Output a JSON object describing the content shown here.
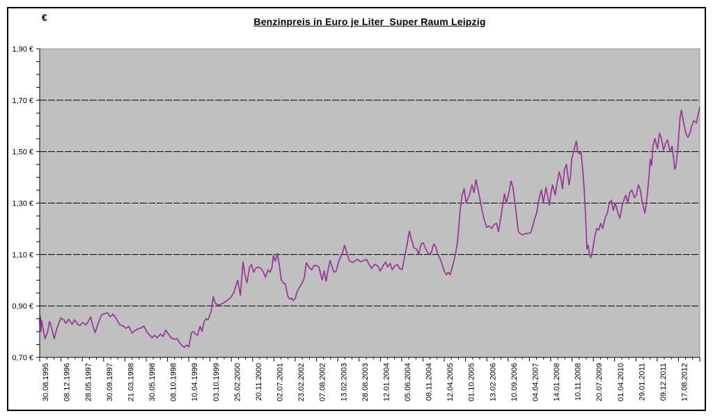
{
  "chart_data": {
    "type": "line",
    "title": "Benzinpreis in Euro je Liter  Super Raum Leipzig",
    "ylabel": "€",
    "xlabel": "",
    "ylim": [
      0.7,
      1.9
    ],
    "y_major_step": 0.2,
    "y_minor_step": 0.05,
    "grid": "horizontal-dashed",
    "legend": "none",
    "plot_bg": "#c0c0c0",
    "grid_color": "#000000",
    "axis_color": "#000000",
    "y_tick_labels": [
      "1,90 €",
      "1,70 €",
      "1,50 €",
      "1,30 €",
      "1,10 €",
      "0,90 €",
      "0,70 €"
    ],
    "x_tick_labels": [
      "30.08.1995",
      "08.12.1996",
      "28.05.1997",
      "30.09.1997",
      "21.03.1998",
      "30.05.1998",
      "08.10.1998",
      "10.04.1999",
      "03.10.1999",
      "25.02.2000",
      "20.11.2000",
      "02.07.2001",
      "23.02.2002",
      "07.08.2002",
      "13.02.2003",
      "28.08.2003",
      "12.01.2004",
      "05.06.2004",
      "08.11.2004",
      "12.04.2005",
      "01.10.2005",
      "13.02.2006",
      "10.09.2006",
      "04.04.2007",
      "14.01.2008",
      "10.11.2008",
      "20.07.2009",
      "01.04.2010",
      "29.01.2011",
      "09.12.2011",
      "17.08.2012"
    ],
    "x_minor_ticks_per_label": 3,
    "series": [
      {
        "name": "Benzinpreis Super Raum Leipzig",
        "color": "#993399",
        "points": [
          [
            0.0,
            0.84
          ],
          [
            0.001,
            0.86
          ],
          [
            0.002,
            0.8
          ],
          [
            0.003,
            0.845
          ],
          [
            0.005,
            0.815
          ],
          [
            0.008,
            0.772
          ],
          [
            0.012,
            0.8
          ],
          [
            0.015,
            0.84
          ],
          [
            0.018,
            0.815
          ],
          [
            0.022,
            0.773
          ],
          [
            0.026,
            0.812
          ],
          [
            0.032,
            0.853
          ],
          [
            0.037,
            0.845
          ],
          [
            0.04,
            0.832
          ],
          [
            0.044,
            0.849
          ],
          [
            0.049,
            0.828
          ],
          [
            0.053,
            0.846
          ],
          [
            0.057,
            0.83
          ],
          [
            0.061,
            0.824
          ],
          [
            0.065,
            0.836
          ],
          [
            0.07,
            0.826
          ],
          [
            0.074,
            0.842
          ],
          [
            0.077,
            0.857
          ],
          [
            0.081,
            0.82
          ],
          [
            0.084,
            0.796
          ],
          [
            0.089,
            0.835
          ],
          [
            0.094,
            0.866
          ],
          [
            0.099,
            0.871
          ],
          [
            0.103,
            0.873
          ],
          [
            0.107,
            0.858
          ],
          [
            0.111,
            0.868
          ],
          [
            0.116,
            0.851
          ],
          [
            0.121,
            0.828
          ],
          [
            0.127,
            0.821
          ],
          [
            0.131,
            0.813
          ],
          [
            0.135,
            0.821
          ],
          [
            0.14,
            0.794
          ],
          [
            0.145,
            0.806
          ],
          [
            0.15,
            0.812
          ],
          [
            0.154,
            0.815
          ],
          [
            0.158,
            0.822
          ],
          [
            0.162,
            0.8
          ],
          [
            0.167,
            0.786
          ],
          [
            0.17,
            0.776
          ],
          [
            0.174,
            0.786
          ],
          [
            0.178,
            0.776
          ],
          [
            0.183,
            0.791
          ],
          [
            0.187,
            0.781
          ],
          [
            0.191,
            0.806
          ],
          [
            0.195,
            0.791
          ],
          [
            0.199,
            0.776
          ],
          [
            0.204,
            0.771
          ],
          [
            0.208,
            0.773
          ],
          [
            0.212,
            0.756
          ],
          [
            0.216,
            0.746
          ],
          [
            0.219,
            0.739
          ],
          [
            0.223,
            0.748
          ],
          [
            0.226,
            0.741
          ],
          [
            0.23,
            0.796
          ],
          [
            0.233,
            0.801
          ],
          [
            0.236,
            0.791
          ],
          [
            0.239,
            0.786
          ],
          [
            0.243,
            0.821
          ],
          [
            0.246,
            0.801
          ],
          [
            0.249,
            0.838
          ],
          [
            0.252,
            0.851
          ],
          [
            0.255,
            0.846
          ],
          [
            0.26,
            0.881
          ],
          [
            0.263,
            0.936
          ],
          [
            0.266,
            0.911
          ],
          [
            0.27,
            0.903
          ],
          [
            0.274,
            0.906
          ],
          [
            0.278,
            0.911
          ],
          [
            0.284,
            0.921
          ],
          [
            0.289,
            0.931
          ],
          [
            0.294,
            0.951
          ],
          [
            0.3,
            1.001
          ],
          [
            0.304,
            0.941
          ],
          [
            0.308,
            1.071
          ],
          [
            0.311,
            1.021
          ],
          [
            0.314,
            0.991
          ],
          [
            0.318,
            1.051
          ],
          [
            0.321,
            1.061
          ],
          [
            0.324,
            1.031
          ],
          [
            0.327,
            1.046
          ],
          [
            0.331,
            1.051
          ],
          [
            0.335,
            1.046
          ],
          [
            0.339,
            1.031
          ],
          [
            0.342,
            1.011
          ],
          [
            0.346,
            1.041
          ],
          [
            0.349,
            1.031
          ],
          [
            0.352,
            1.051
          ],
          [
            0.354,
            1.096
          ],
          [
            0.357,
            1.074
          ],
          [
            0.36,
            1.104
          ],
          [
            0.363,
            1.061
          ],
          [
            0.366,
            1.001
          ],
          [
            0.369,
            0.989
          ],
          [
            0.372,
            0.986
          ],
          [
            0.376,
            0.938
          ],
          [
            0.379,
            0.926
          ],
          [
            0.382,
            0.931
          ],
          [
            0.384,
            0.921
          ],
          [
            0.387,
            0.929
          ],
          [
            0.39,
            0.956
          ],
          [
            0.394,
            0.974
          ],
          [
            0.398,
            0.991
          ],
          [
            0.401,
            1.011
          ],
          [
            0.404,
            1.068
          ],
          [
            0.408,
            1.051
          ],
          [
            0.412,
            1.041
          ],
          [
            0.416,
            1.058
          ],
          [
            0.42,
            1.056
          ],
          [
            0.423,
            1.051
          ],
          [
            0.426,
            1.021
          ],
          [
            0.428,
            1.001
          ],
          [
            0.431,
            1.036
          ],
          [
            0.434,
            0.996
          ],
          [
            0.437,
            1.041
          ],
          [
            0.44,
            1.078
          ],
          [
            0.443,
            1.051
          ],
          [
            0.446,
            1.031
          ],
          [
            0.449,
            1.036
          ],
          [
            0.454,
            1.081
          ],
          [
            0.458,
            1.101
          ],
          [
            0.462,
            1.136
          ],
          [
            0.466,
            1.101
          ],
          [
            0.469,
            1.076
          ],
          [
            0.474,
            1.069
          ],
          [
            0.478,
            1.076
          ],
          [
            0.482,
            1.081
          ],
          [
            0.486,
            1.071
          ],
          [
            0.49,
            1.076
          ],
          [
            0.495,
            1.081
          ],
          [
            0.499,
            1.061
          ],
          [
            0.503,
            1.046
          ],
          [
            0.507,
            1.061
          ],
          [
            0.512,
            1.056
          ],
          [
            0.516,
            1.036
          ],
          [
            0.52,
            1.056
          ],
          [
            0.524,
            1.071
          ],
          [
            0.527,
            1.051
          ],
          [
            0.531,
            1.066
          ],
          [
            0.534,
            1.041
          ],
          [
            0.538,
            1.056
          ],
          [
            0.542,
            1.061
          ],
          [
            0.545,
            1.046
          ],
          [
            0.549,
            1.041
          ],
          [
            0.553,
            1.091
          ],
          [
            0.556,
            1.131
          ],
          [
            0.56,
            1.191
          ],
          [
            0.563,
            1.161
          ],
          [
            0.567,
            1.126
          ],
          [
            0.571,
            1.121
          ],
          [
            0.574,
            1.101
          ],
          [
            0.578,
            1.141
          ],
          [
            0.581,
            1.146
          ],
          [
            0.585,
            1.121
          ],
          [
            0.589,
            1.101
          ],
          [
            0.593,
            1.106
          ],
          [
            0.597,
            1.141
          ],
          [
            0.6,
            1.131
          ],
          [
            0.603,
            1.101
          ],
          [
            0.608,
            1.076
          ],
          [
            0.612,
            1.041
          ],
          [
            0.616,
            1.021
          ],
          [
            0.619,
            1.031
          ],
          [
            0.622,
            1.021
          ],
          [
            0.627,
            1.071
          ],
          [
            0.63,
            1.101
          ],
          [
            0.633,
            1.151
          ],
          [
            0.637,
            1.271
          ],
          [
            0.64,
            1.331
          ],
          [
            0.643,
            1.356
          ],
          [
            0.646,
            1.301
          ],
          [
            0.651,
            1.331
          ],
          [
            0.655,
            1.371
          ],
          [
            0.658,
            1.341
          ],
          [
            0.661,
            1.391
          ],
          [
            0.665,
            1.341
          ],
          [
            0.668,
            1.301
          ],
          [
            0.671,
            1.261
          ],
          [
            0.674,
            1.231
          ],
          [
            0.677,
            1.206
          ],
          [
            0.681,
            1.211
          ],
          [
            0.685,
            1.201
          ],
          [
            0.688,
            1.216
          ],
          [
            0.692,
            1.221
          ],
          [
            0.695,
            1.188
          ],
          [
            0.699,
            1.251
          ],
          [
            0.704,
            1.336
          ],
          [
            0.707,
            1.301
          ],
          [
            0.711,
            1.341
          ],
          [
            0.714,
            1.386
          ],
          [
            0.717,
            1.361
          ],
          [
            0.721,
            1.281
          ],
          [
            0.725,
            1.191
          ],
          [
            0.728,
            1.181
          ],
          [
            0.732,
            1.176
          ],
          [
            0.735,
            1.181
          ],
          [
            0.74,
            1.181
          ],
          [
            0.744,
            1.186
          ],
          [
            0.747,
            1.211
          ],
          [
            0.75,
            1.241
          ],
          [
            0.753,
            1.261
          ],
          [
            0.756,
            1.311
          ],
          [
            0.76,
            1.351
          ],
          [
            0.763,
            1.301
          ],
          [
            0.767,
            1.361
          ],
          [
            0.77,
            1.321
          ],
          [
            0.772,
            1.291
          ],
          [
            0.775,
            1.346
          ],
          [
            0.777,
            1.371
          ],
          [
            0.781,
            1.331
          ],
          [
            0.784,
            1.381
          ],
          [
            0.787,
            1.421
          ],
          [
            0.79,
            1.391
          ],
          [
            0.792,
            1.356
          ],
          [
            0.795,
            1.431
          ],
          [
            0.798,
            1.451
          ],
          [
            0.8,
            1.411
          ],
          [
            0.802,
            1.371
          ],
          [
            0.804,
            1.401
          ],
          [
            0.806,
            1.471
          ],
          [
            0.809,
            1.501
          ],
          [
            0.811,
            1.521
          ],
          [
            0.813,
            1.541
          ],
          [
            0.815,
            1.501
          ],
          [
            0.818,
            1.491
          ],
          [
            0.82,
            1.501
          ],
          [
            0.823,
            1.421
          ],
          [
            0.825,
            1.351
          ],
          [
            0.827,
            1.251
          ],
          [
            0.829,
            1.121
          ],
          [
            0.831,
            1.136
          ],
          [
            0.833,
            1.101
          ],
          [
            0.835,
            1.088
          ],
          [
            0.838,
            1.121
          ],
          [
            0.841,
            1.171
          ],
          [
            0.844,
            1.201
          ],
          [
            0.847,
            1.196
          ],
          [
            0.85,
            1.221
          ],
          [
            0.853,
            1.201
          ],
          [
            0.857,
            1.246
          ],
          [
            0.86,
            1.261
          ],
          [
            0.863,
            1.301
          ],
          [
            0.866,
            1.311
          ],
          [
            0.869,
            1.271
          ],
          [
            0.872,
            1.301
          ],
          [
            0.876,
            1.261
          ],
          [
            0.879,
            1.241
          ],
          [
            0.882,
            1.286
          ],
          [
            0.885,
            1.311
          ],
          [
            0.888,
            1.331
          ],
          [
            0.891,
            1.301
          ],
          [
            0.894,
            1.341
          ],
          [
            0.897,
            1.351
          ],
          [
            0.901,
            1.321
          ],
          [
            0.904,
            1.331
          ],
          [
            0.907,
            1.371
          ],
          [
            0.91,
            1.351
          ],
          [
            0.913,
            1.301
          ],
          [
            0.917,
            1.261
          ],
          [
            0.92,
            1.321
          ],
          [
            0.923,
            1.401
          ],
          [
            0.925,
            1.471
          ],
          [
            0.927,
            1.446
          ],
          [
            0.929,
            1.521
          ],
          [
            0.932,
            1.551
          ],
          [
            0.936,
            1.511
          ],
          [
            0.939,
            1.571
          ],
          [
            0.942,
            1.551
          ],
          [
            0.945,
            1.506
          ],
          [
            0.948,
            1.531
          ],
          [
            0.951,
            1.546
          ],
          [
            0.955,
            1.501
          ],
          [
            0.958,
            1.521
          ],
          [
            0.96,
            1.481
          ],
          [
            0.962,
            1.431
          ],
          [
            0.964,
            1.446
          ],
          [
            0.967,
            1.521
          ],
          [
            0.97,
            1.631
          ],
          [
            0.972,
            1.661
          ],
          [
            0.975,
            1.621
          ],
          [
            0.979,
            1.571
          ],
          [
            0.982,
            1.556
          ],
          [
            0.985,
            1.571
          ],
          [
            0.988,
            1.601
          ],
          [
            0.991,
            1.621
          ],
          [
            0.995,
            1.611
          ],
          [
            0.997,
            1.641
          ],
          [
            1.0,
            1.671
          ]
        ]
      }
    ]
  }
}
